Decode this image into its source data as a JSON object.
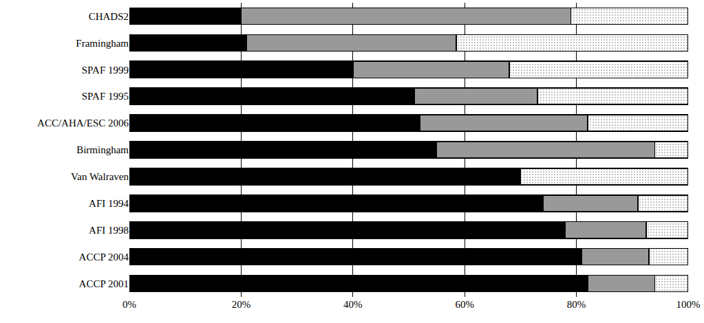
{
  "chart_data": {
    "type": "bar",
    "orientation": "horizontal",
    "stacked": true,
    "grid": true,
    "categories": [
      "CHADS2",
      "Framingham",
      "SPAF 1999",
      "SPAF 1995",
      "ACC/AHA/ESC 2006",
      "Birmingham",
      "Van Walraven",
      "AFI 1994",
      "AFI 1998",
      "ACCP 2004",
      "ACCP 2001"
    ],
    "series": [
      {
        "color": "#000000",
        "values": [
          20,
          21,
          40,
          51,
          52,
          55,
          70,
          74,
          78,
          81,
          82
        ]
      },
      {
        "color": "#999999",
        "values": [
          59,
          37.5,
          28,
          22,
          30,
          39,
          0,
          17,
          14.5,
          12,
          12
        ]
      },
      {
        "color": "#ffffff",
        "marker": "dots",
        "values": [
          21,
          41.5,
          32,
          27,
          18,
          6,
          30,
          9,
          7.5,
          7,
          6
        ]
      }
    ],
    "xlim": [
      0,
      100
    ],
    "xticks": [
      {
        "value": 0,
        "label": "0%"
      },
      {
        "value": 20,
        "label": "20%"
      },
      {
        "value": 40,
        "label": "40%"
      },
      {
        "value": 60,
        "label": "60%"
      },
      {
        "value": 80,
        "label": "80%"
      },
      {
        "value": 100,
        "label": "100%"
      }
    ]
  }
}
